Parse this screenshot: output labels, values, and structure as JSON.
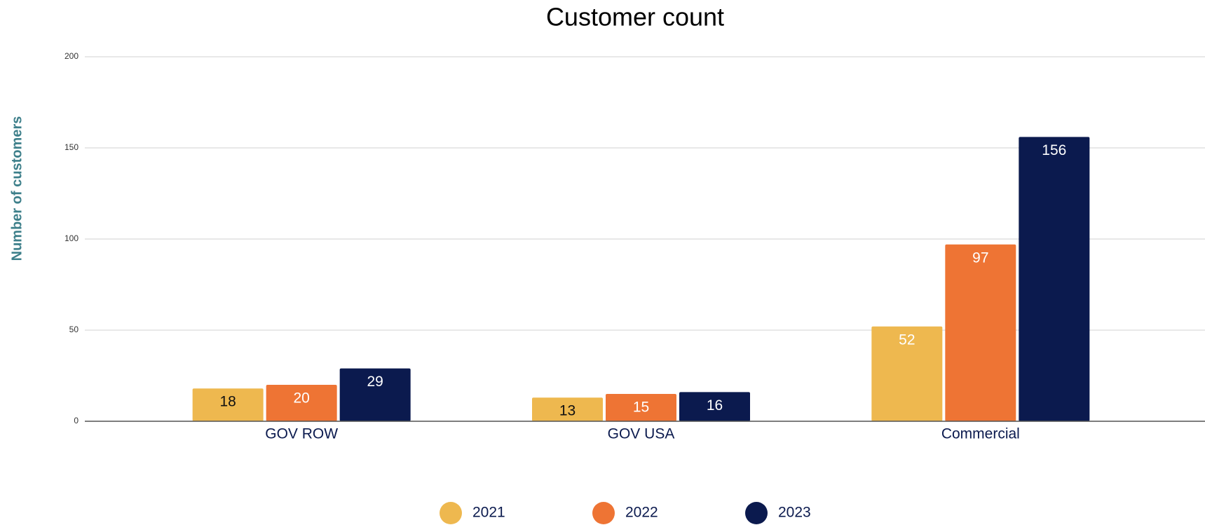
{
  "chart_data": {
    "type": "bar",
    "title": "Customer count",
    "y_label": "Number of customers",
    "categories": [
      "GOV ROW",
      "GOV USA",
      "Commercial"
    ],
    "series": [
      {
        "name": "2021",
        "color": "#eeb84f",
        "values": [
          18,
          13,
          52
        ]
      },
      {
        "name": "2022",
        "color": "#ee7434",
        "values": [
          20,
          15,
          97
        ]
      },
      {
        "name": "2023",
        "color": "#0b1a4e",
        "values": [
          29,
          16,
          156
        ]
      }
    ],
    "ylim": [
      0,
      200
    ],
    "yticks": [
      0,
      50,
      100,
      150,
      200
    ],
    "grid": true,
    "legend": "bottom"
  }
}
